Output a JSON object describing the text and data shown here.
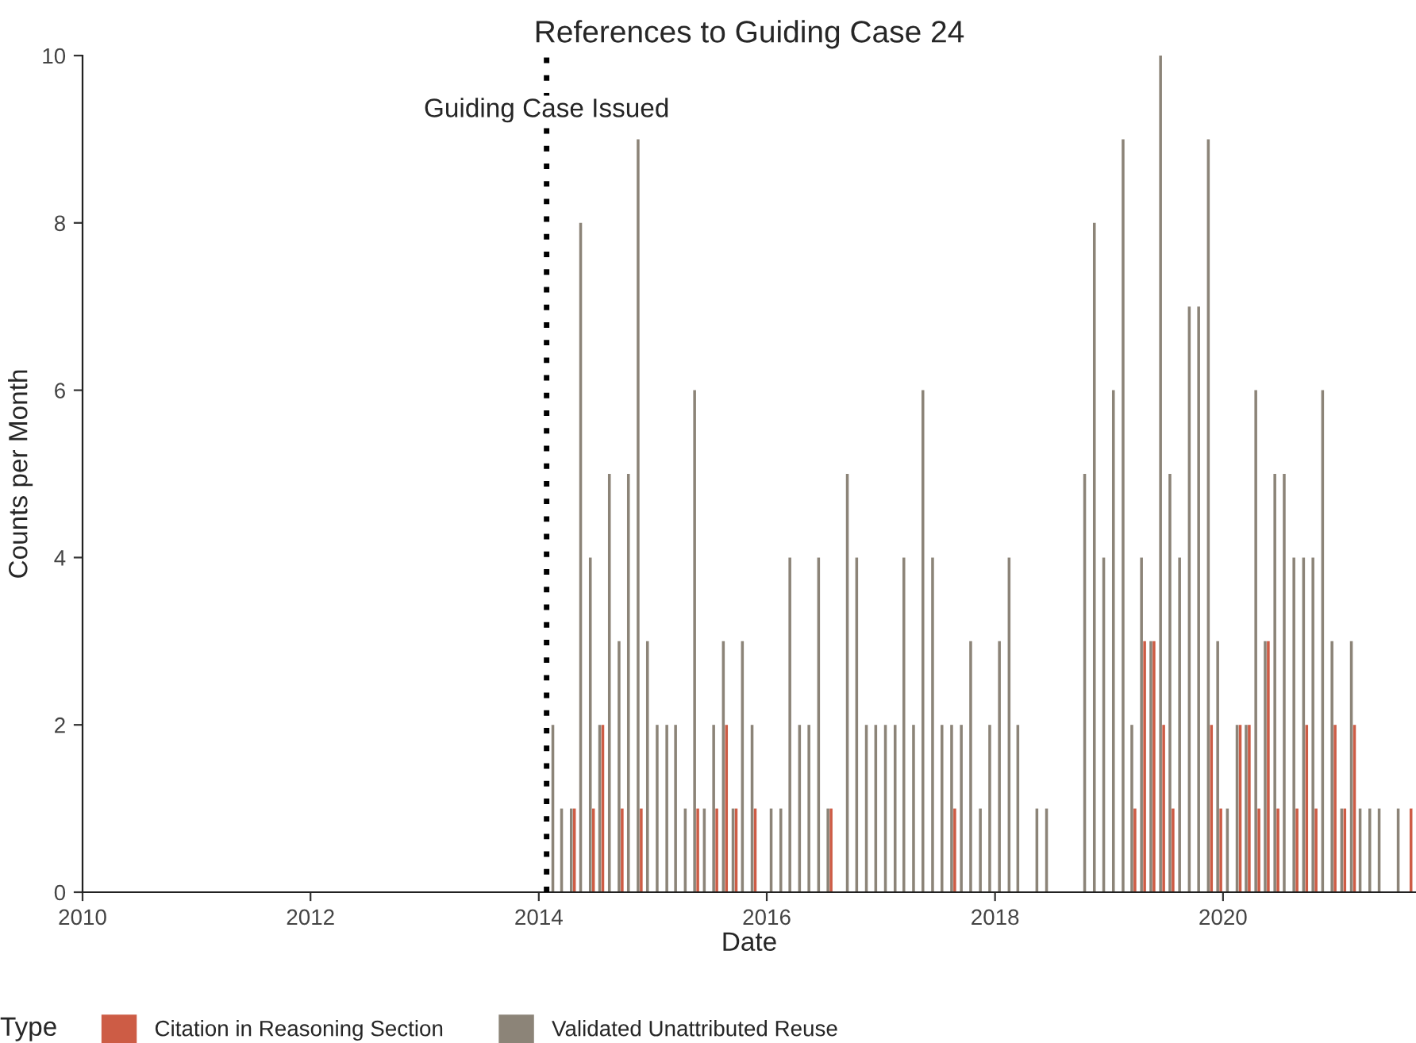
{
  "chart_data": {
    "type": "bar",
    "title": "References to Guiding Case 24",
    "xlabel": "Date",
    "ylabel": "Counts per Month",
    "legend_title": "Type",
    "series": [
      {
        "name": "Citation in Reasoning Section",
        "color": "#cd5c45",
        "x": [
          "2014-04-25",
          "2014-06-25",
          "2014-07-25",
          "2014-09-25",
          "2014-11-25",
          "2015-05-25",
          "2015-07-25",
          "2015-08-25",
          "2015-09-25",
          "2015-11-25",
          "2016-07-25",
          "2017-08-25",
          "2019-03-25",
          "2019-04-25",
          "2019-05-25",
          "2019-06-25",
          "2019-07-25",
          "2019-11-25",
          "2019-12-25",
          "2020-02-25",
          "2020-03-25",
          "2020-04-25",
          "2020-05-25",
          "2020-06-25",
          "2020-08-25",
          "2020-09-25",
          "2020-10-25",
          "2020-12-25",
          "2021-01-25",
          "2021-02-25",
          "2021-08-25"
        ],
        "values": [
          1,
          1,
          2,
          1,
          1,
          1,
          1,
          2,
          1,
          1,
          1,
          1,
          1,
          3,
          3,
          2,
          1,
          2,
          1,
          2,
          2,
          1,
          3,
          1,
          1,
          2,
          1,
          2,
          1,
          2,
          1
        ]
      },
      {
        "name": "Validated Unattributed Reuse",
        "color": "#8c8478",
        "x": [
          "2014-02-15",
          "2014-03-15",
          "2014-04-15",
          "2014-05-15",
          "2014-06-15",
          "2014-07-15",
          "2014-08-15",
          "2014-09-15",
          "2014-10-15",
          "2014-11-15",
          "2014-12-15",
          "2015-01-15",
          "2015-02-15",
          "2015-03-15",
          "2015-04-15",
          "2015-05-15",
          "2015-06-15",
          "2015-07-15",
          "2015-08-15",
          "2015-09-15",
          "2015-10-15",
          "2015-11-15",
          "2016-01-15",
          "2016-02-15",
          "2016-03-15",
          "2016-04-15",
          "2016-05-15",
          "2016-06-15",
          "2016-07-15",
          "2016-09-15",
          "2016-10-15",
          "2016-11-15",
          "2016-12-15",
          "2017-01-15",
          "2017-02-15",
          "2017-03-15",
          "2017-04-15",
          "2017-05-15",
          "2017-06-15",
          "2017-07-15",
          "2017-08-15",
          "2017-09-15",
          "2017-10-15",
          "2017-11-15",
          "2017-12-15",
          "2018-01-15",
          "2018-02-15",
          "2018-03-15",
          "2018-05-15",
          "2018-06-15",
          "2018-10-15",
          "2018-11-15",
          "2018-12-15",
          "2019-01-15",
          "2019-02-15",
          "2019-03-15",
          "2019-04-15",
          "2019-05-15",
          "2019-06-15",
          "2019-07-15",
          "2019-08-15",
          "2019-09-15",
          "2019-10-15",
          "2019-11-15",
          "2019-12-15",
          "2020-01-15",
          "2020-02-15",
          "2020-03-15",
          "2020-04-15",
          "2020-05-15",
          "2020-06-15",
          "2020-07-15",
          "2020-08-15",
          "2020-09-15",
          "2020-10-15",
          "2020-11-15",
          "2020-12-15",
          "2021-01-15",
          "2021-02-15",
          "2021-03-15",
          "2021-04-15",
          "2021-05-15",
          "2021-07-15"
        ],
        "values": [
          2,
          1,
          1,
          8,
          4,
          2,
          5,
          3,
          5,
          9,
          3,
          2,
          2,
          2,
          1,
          6,
          1,
          2,
          3,
          1,
          3,
          2,
          1,
          1,
          4,
          2,
          2,
          4,
          1,
          5,
          4,
          2,
          2,
          2,
          2,
          4,
          2,
          6,
          4,
          2,
          2,
          2,
          3,
          1,
          2,
          3,
          4,
          2,
          1,
          1,
          5,
          8,
          4,
          6,
          9,
          2,
          4,
          3,
          10,
          5,
          4,
          7,
          7,
          9,
          3,
          1,
          2,
          2,
          6,
          3,
          5,
          5,
          4,
          4,
          4,
          6,
          3,
          1,
          3,
          1,
          1,
          1,
          1
        ]
      }
    ],
    "xlim": [
      "2010-01-01",
      "2021-09-10"
    ],
    "xticks": [
      "2010",
      "2012",
      "2014",
      "2016",
      "2018",
      "2020"
    ],
    "ylim": [
      0,
      10
    ],
    "yticks": [
      0,
      2,
      4,
      6,
      8,
      10
    ],
    "ref_lines": [
      {
        "axis": "x",
        "value": "2014-01-26",
        "label": "Guiding Case Issued",
        "color": "#000000",
        "line_style": "dotted"
      }
    ],
    "grid": false,
    "legend": "bottom"
  }
}
